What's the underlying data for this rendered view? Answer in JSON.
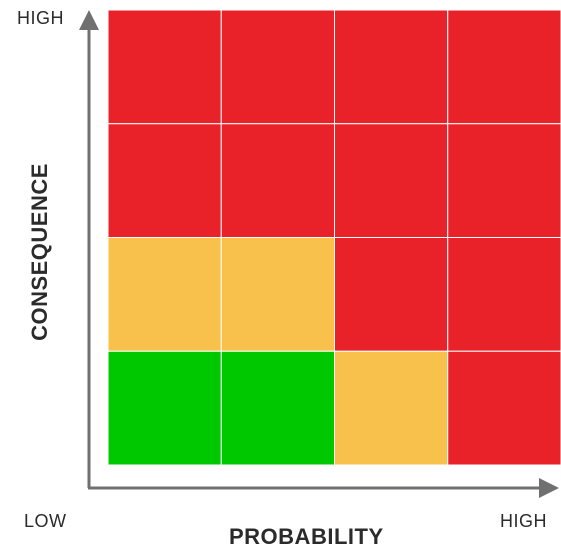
{
  "axes": {
    "y_title": "CONSEQUENCE",
    "y_high": "HIGH",
    "x_title": "PROBABILITY",
    "x_low": "LOW",
    "x_high": "HIGH"
  },
  "colors": {
    "red": "#e92129",
    "amber": "#f8c14c",
    "green": "#00c800",
    "axis": "#707070",
    "grid_line": "#ffffff"
  },
  "matrix": {
    "rows_top_to_bottom": [
      [
        "red",
        "red",
        "red",
        "red"
      ],
      [
        "red",
        "red",
        "red",
        "red"
      ],
      [
        "amber",
        "amber",
        "red",
        "red"
      ],
      [
        "green",
        "green",
        "amber",
        "red"
      ]
    ]
  }
}
